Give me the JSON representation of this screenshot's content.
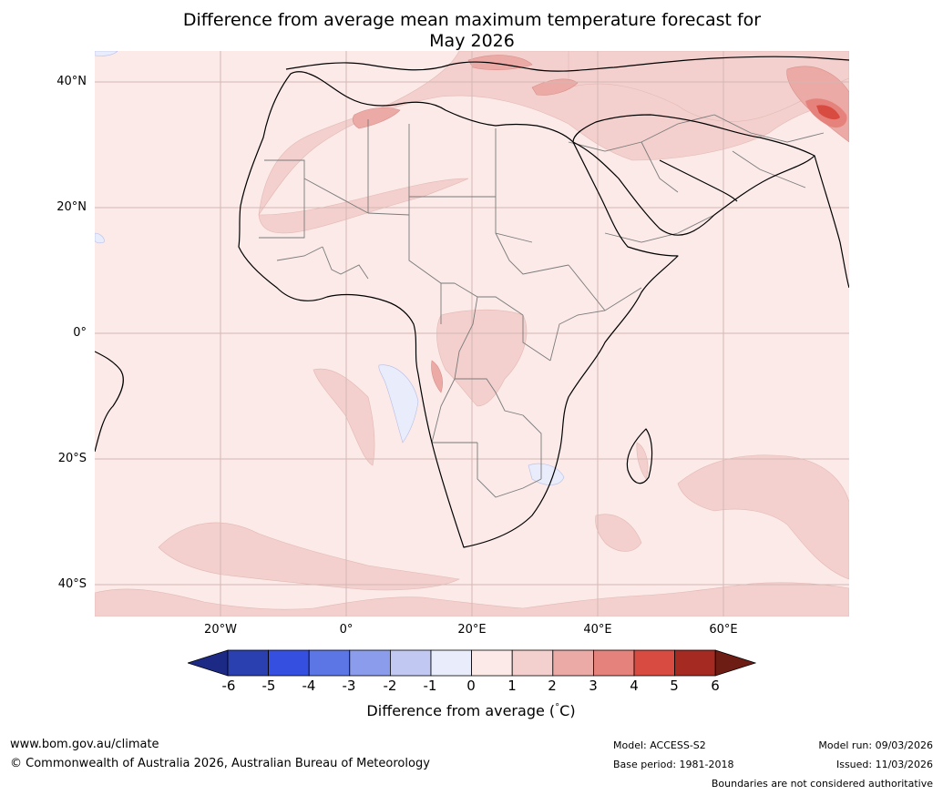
{
  "title_line1": "Difference from average mean maximum temperature forecast for",
  "title_line2": "May 2026",
  "lat_labels": [
    "40°N",
    "20°N",
    "0°",
    "20°S",
    "40°S"
  ],
  "lon_labels": [
    "20°W",
    "0°",
    "20°E",
    "40°E",
    "60°E"
  ],
  "colorbar": {
    "label": "Difference from average (°C)",
    "ticks": [
      "-6",
      "-5",
      "-4",
      "-3",
      "-2",
      "-1",
      "0",
      "1",
      "2",
      "3",
      "4",
      "5",
      "6"
    ],
    "colors": [
      "#1c2a85",
      "#2a3fb0",
      "#3550e0",
      "#5d76e6",
      "#8a9ceb",
      "#c1c9f3",
      "#e9ecfb",
      "#fbeae8",
      "#f3d0cd",
      "#ebaaa6",
      "#e5827c",
      "#d84b41",
      "#a52a22",
      "#6e1d15"
    ],
    "unit_prefix": "Difference from average (",
    "unit_degree": "°",
    "unit_suffix": "C)"
  },
  "map_colors": {
    "ocean_land_base": "#fbeae8",
    "anomaly_1_2": "#f3d0cd",
    "anomaly_2_3": "#ebaaa6",
    "anomaly_3_4": "#e5827c",
    "anomaly_4_5": "#d84b41",
    "anomaly_neg": "#e9ecfb",
    "coastline": "#000000",
    "borders": "#7a7a7a",
    "grid": "#d6b7b4"
  },
  "footer": {
    "website": "www.bom.gov.au/climate",
    "copyright": "© Commonwealth of Australia 2026, Australian Bureau of Meteorology",
    "model": "Model: ACCESS-S2",
    "base_period": "Base period: 1981-2018",
    "model_run": "Model run: 09/03/2026",
    "issued": "Issued: 11/03/2026",
    "disclaimer": "Boundaries are not considered authoritative"
  }
}
